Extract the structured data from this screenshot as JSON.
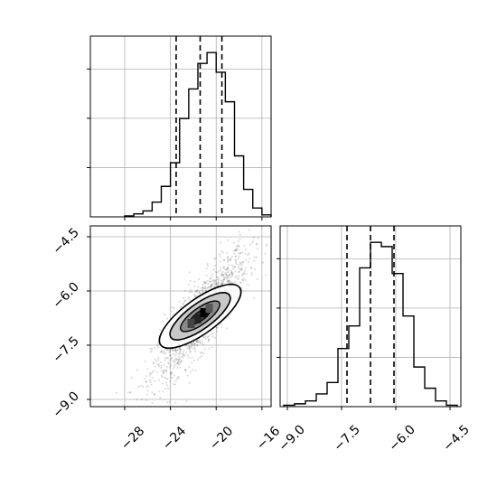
{
  "chart_data": [
    {
      "panel": "marginal-x",
      "type": "histogram",
      "x_range": [
        -31,
        -15.2
      ],
      "grid": true,
      "bins": [
        [
          -28.0,
          -27.2,
          1
        ],
        [
          -27.2,
          -26.4,
          3
        ],
        [
          -26.4,
          -25.6,
          6
        ],
        [
          -25.6,
          -24.8,
          15
        ],
        [
          -24.8,
          -24.0,
          31
        ],
        [
          -24.0,
          -23.2,
          55
        ],
        [
          -23.2,
          -22.4,
          100
        ],
        [
          -22.4,
          -21.6,
          130
        ],
        [
          -21.6,
          -20.8,
          156
        ],
        [
          -20.8,
          -20.0,
          167
        ],
        [
          -20.0,
          -19.2,
          147
        ],
        [
          -19.2,
          -18.4,
          117
        ],
        [
          -18.4,
          -17.6,
          62
        ],
        [
          -17.6,
          -16.8,
          28
        ],
        [
          -16.8,
          -16.0,
          9
        ],
        [
          -16.0,
          -15.2,
          2
        ]
      ],
      "quantiles": [
        -23.5,
        -21.4,
        -19.5
      ]
    },
    {
      "panel": "marginal-y",
      "type": "histogram",
      "x_range": [
        -9.2,
        -4.2
      ],
      "grid": true,
      "bins": [
        [
          -9.1,
          -8.8,
          1
        ],
        [
          -8.8,
          -8.5,
          2
        ],
        [
          -8.5,
          -8.2,
          4
        ],
        [
          -8.2,
          -7.9,
          9
        ],
        [
          -7.9,
          -7.6,
          17
        ],
        [
          -7.6,
          -7.3,
          41
        ],
        [
          -7.3,
          -7.0,
          57
        ],
        [
          -7.0,
          -6.7,
          98
        ],
        [
          -6.7,
          -6.4,
          116
        ],
        [
          -6.4,
          -6.1,
          113
        ],
        [
          -6.1,
          -5.8,
          94
        ],
        [
          -5.8,
          -5.5,
          64
        ],
        [
          -5.5,
          -5.2,
          28
        ],
        [
          -5.2,
          -4.9,
          13
        ],
        [
          -4.9,
          -4.6,
          4
        ],
        [
          -4.6,
          -4.3,
          1
        ]
      ],
      "quantiles": [
        -7.35,
        -6.7,
        -6.05
      ]
    },
    {
      "panel": "joint",
      "type": "scatter-density-contour",
      "x_range": [
        -31,
        -15.2
      ],
      "y_range": [
        -9.2,
        -4.2
      ],
      "grid": true,
      "mean": [
        -21.4,
        -6.7
      ],
      "sd": [
        2.1,
        0.9
      ],
      "correlation": 0.85,
      "x_ticks": [
        "−28",
        "−24",
        "−20",
        "−16"
      ],
      "y_ticks": [
        "−9.0",
        "−7.5",
        "−6.0",
        "−4.5"
      ]
    }
  ],
  "axis_ticks": {
    "x_values": [
      -28,
      -24,
      -20,
      -16
    ],
    "y_values": [
      -9.0,
      -7.5,
      -6.0,
      -4.5
    ],
    "m2_values": [
      -9.0,
      -7.5,
      -6.0,
      -4.5
    ]
  }
}
